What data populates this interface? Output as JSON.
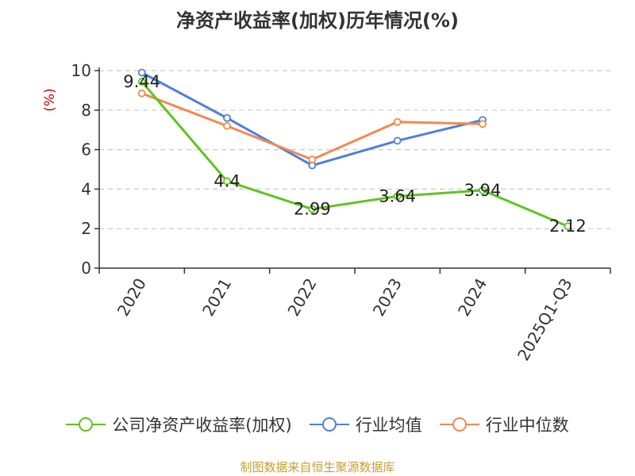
{
  "chart_data": {
    "type": "line",
    "title": "净资产收益率(加权)历年情况(%)",
    "ylabel": "(%)",
    "categories": [
      "2020",
      "2021",
      "2022",
      "2023",
      "2024",
      "2025Q1-Q3"
    ],
    "ylim": [
      0,
      10
    ],
    "yticks": [
      "0",
      "2",
      "4",
      "6",
      "8",
      "10"
    ],
    "grid": true,
    "legend_position": "bottom",
    "series": [
      {
        "name": "公司净资产收益率(加权)",
        "color": "#5ec51f",
        "values": [
          9.44,
          4.4,
          2.99,
          3.64,
          3.94,
          2.12
        ],
        "labels": [
          "9.44",
          "4.4",
          "2.99",
          "3.64",
          "3.94",
          "2.12"
        ]
      },
      {
        "name": "行业均值",
        "color": "#4e7fe0",
        "values": [
          9.9,
          7.6,
          5.2,
          6.45,
          7.5,
          null
        ]
      },
      {
        "name": "行业中位数",
        "color": "#f5894e",
        "values": [
          8.85,
          7.2,
          5.5,
          7.4,
          7.3,
          null
        ]
      }
    ]
  },
  "source": "制图数据来自恒生聚源数据库"
}
